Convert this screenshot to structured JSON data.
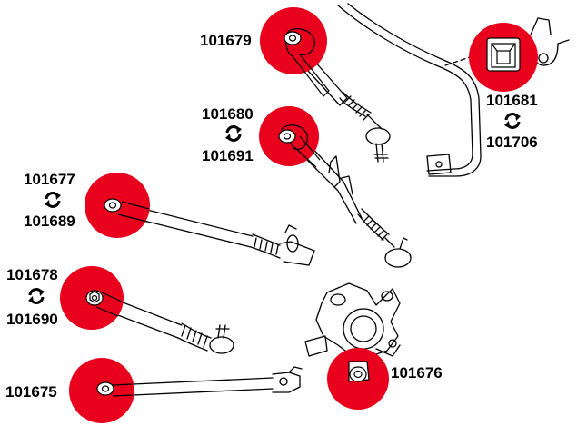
{
  "colors": {
    "highlight": "#e8001c",
    "line": "#000000",
    "background": "#ffffff"
  },
  "labels": {
    "upper_arm": "101679",
    "upper_arm_2_primary": "101680",
    "upper_arm_2_alt": "101691",
    "sway_bar_bush_primary": "101681",
    "sway_bar_bush_alt": "101706",
    "mid_arm_primary": "101677",
    "mid_arm_alt": "101689",
    "lower_arm_primary": "101678",
    "lower_arm_alt": "101690",
    "trailing_arm": "101675",
    "knuckle_bush": "101676"
  },
  "icons": {
    "interchange": "swap-arrows-icon"
  }
}
